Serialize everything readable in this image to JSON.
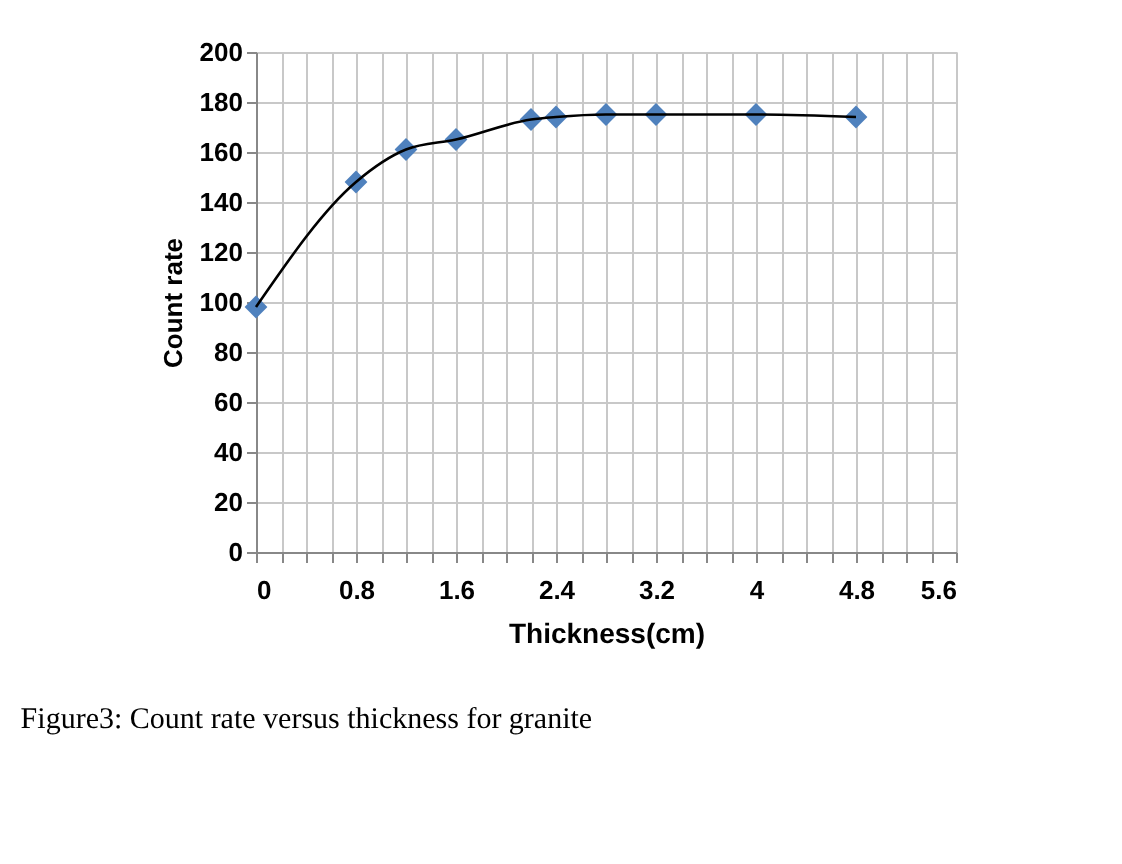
{
  "chart_data": {
    "type": "scatter",
    "xlabel": "Thickness(cm)",
    "ylabel": "Count rate",
    "x": [
      0,
      0.8,
      1.2,
      1.6,
      2.2,
      2.4,
      2.8,
      3.2,
      4.0,
      4.8
    ],
    "series": [
      {
        "color": "#4f81bd",
        "marker": "diamond",
        "values": [
          98,
          148,
          161,
          165,
          173,
          174,
          175,
          175,
          175,
          174
        ]
      },
      {
        "type": "line",
        "color": "#000000",
        "marker": "none",
        "values": [
          98,
          148,
          161,
          165,
          173,
          174,
          175,
          175,
          175,
          174
        ]
      }
    ],
    "xlim": [
      0,
      5.6
    ],
    "ylim": [
      0,
      200
    ],
    "xticks": [
      0,
      {
        "value": 0.2,
        "label": null
      },
      {
        "value": 0.4,
        "label": null
      },
      {
        "value": 0.6,
        "label": null
      },
      0.8,
      {
        "value": 1.0,
        "label": null
      },
      {
        "value": 1.2,
        "label": null
      },
      {
        "value": 1.4,
        "label": null
      },
      1.6,
      {
        "value": 1.8,
        "label": null
      },
      {
        "value": 2.0,
        "label": null
      },
      {
        "value": 2.2,
        "label": null
      },
      2.4,
      {
        "value": 2.6,
        "label": null
      },
      {
        "value": 2.8,
        "label": null
      },
      {
        "value": 3.0,
        "label": null
      },
      3.2,
      {
        "value": 3.4,
        "label": null
      },
      {
        "value": 3.6,
        "label": null
      },
      {
        "value": 3.8,
        "label": null
      },
      4,
      {
        "value": 4.2,
        "label": null
      },
      {
        "value": 4.4,
        "label": null
      },
      {
        "value": 4.6,
        "label": null
      },
      4.8,
      {
        "value": 5.0,
        "label": null
      },
      {
        "value": 5.2,
        "label": null
      },
      {
        "value": 5.4,
        "label": null
      },
      5.6
    ],
    "yticks": [
      0,
      20,
      40,
      60,
      80,
      100,
      120,
      140,
      160,
      180,
      200
    ],
    "grid": true,
    "annotations": [
      "Figure3: Count rate versus thickness for granite"
    ]
  }
}
